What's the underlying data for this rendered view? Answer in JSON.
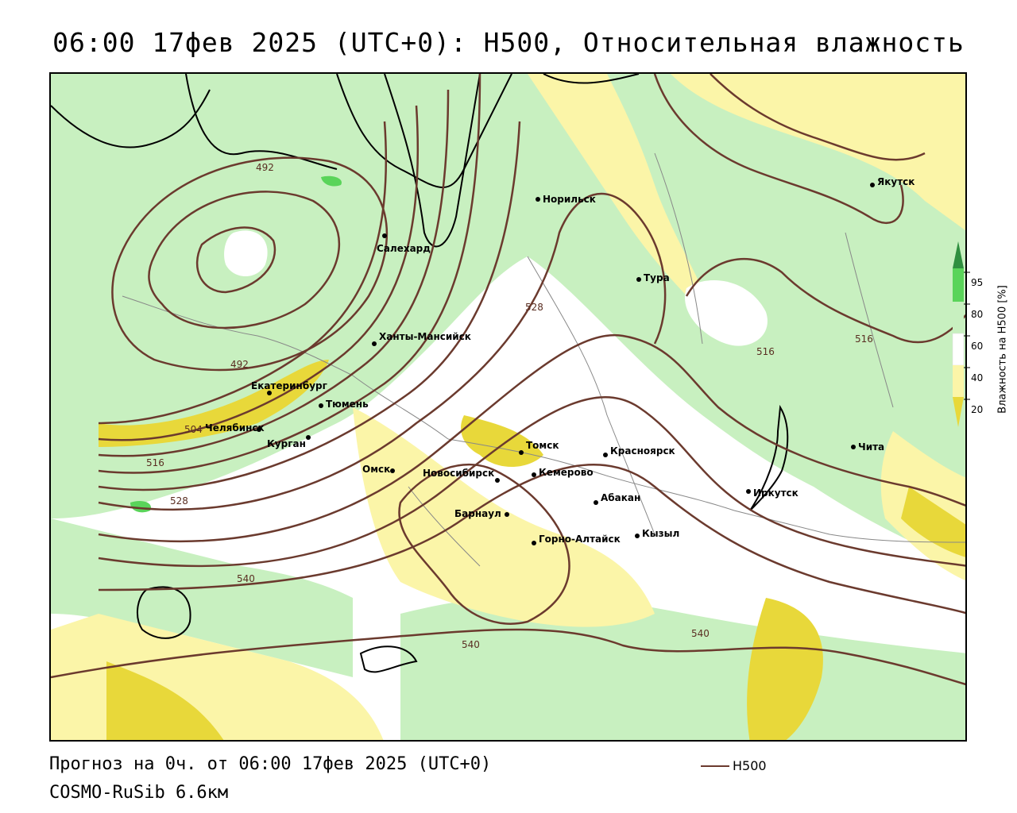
{
  "title": "06:00 17фев 2025 (UTC+0): H500, Относительная влажность",
  "colors": {
    "rh_20": "#e8d83a",
    "rh_40": "#fbf5a8",
    "rh_60": "#ffffff",
    "rh_80": "#c8f0c0",
    "rh_95": "#5ad45a",
    "rh_max": "#2f8f3f",
    "h500_line": "#6b3a2e",
    "coast": "#000000",
    "borders": "#888888"
  },
  "legend": {
    "title": "Влажность на H500 [%]",
    "ticks": [
      "95",
      "80",
      "60",
      "40",
      "20"
    ]
  },
  "cities": [
    {
      "name": "Салехард"
    },
    {
      "name": "Норильск"
    },
    {
      "name": "Якутск"
    },
    {
      "name": "Тура"
    },
    {
      "name": "Ханты-Мансийск"
    },
    {
      "name": "Екатеринбург"
    },
    {
      "name": "Тюмень"
    },
    {
      "name": "Челябинск"
    },
    {
      "name": "Курган"
    },
    {
      "name": "Омск"
    },
    {
      "name": "Новосибирск"
    },
    {
      "name": "Томск"
    },
    {
      "name": "Кемерово"
    },
    {
      "name": "Красноярск"
    },
    {
      "name": "Абакан"
    },
    {
      "name": "Барнаул"
    },
    {
      "name": "Горно-Алтайск"
    },
    {
      "name": "Кызыл"
    },
    {
      "name": "Иркутск"
    },
    {
      "name": "Чита"
    }
  ],
  "isolines": [
    {
      "value": "492"
    },
    {
      "value": "492"
    },
    {
      "value": "504"
    },
    {
      "value": "516"
    },
    {
      "value": "528"
    },
    {
      "value": "528"
    },
    {
      "value": "516"
    },
    {
      "value": "516"
    },
    {
      "value": "540"
    },
    {
      "value": "540"
    },
    {
      "value": "540"
    }
  ],
  "footer": {
    "forecast": "Прогноз на 0ч. от 06:00 17фев 2025 (UTC+0)",
    "model": "COSMO-RuSib 6.6км",
    "line_legend": "H500"
  }
}
